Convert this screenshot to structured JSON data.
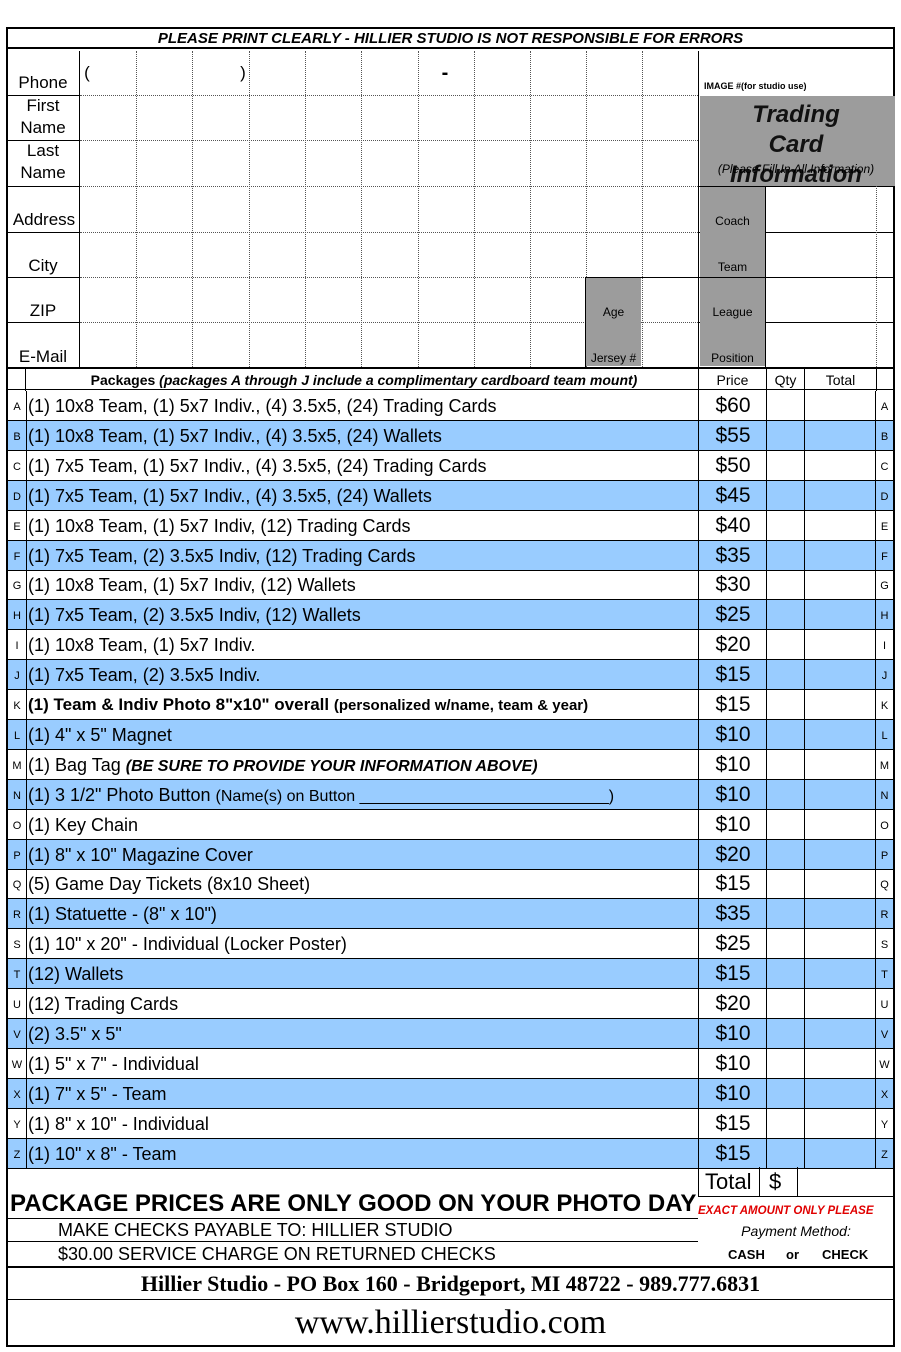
{
  "header_notice": "PLEASE PRINT CLEARLY - HILLIER STUDIO IS NOT RESPONSIBLE FOR ERRORS",
  "fields": {
    "phone": "Phone",
    "phone_paren_open": "(",
    "phone_paren_close": ")",
    "phone_dash": "-",
    "first_name": "First Name",
    "last_name": "Last Name",
    "address": "Address",
    "city": "City",
    "zip": "ZIP",
    "email": "E-Mail",
    "age": "Age",
    "jersey": "Jersey #"
  },
  "trading_card": {
    "image_note": "IMAGE #(for studio use)",
    "title": "Trading Card Information",
    "subtitle": "(Please Fill In All Information)",
    "coach": "Coach",
    "team": "Team",
    "league": "League",
    "position": "Position"
  },
  "table_header": {
    "packages": "Packages",
    "packages_note": "(packages A through J include a complimentary cardboard team mount)",
    "price": "Price",
    "qty": "Qty",
    "total": "Total"
  },
  "packages": [
    {
      "letter": "A",
      "desc": "(1) 10x8 Team, (1) 5x7 Indiv., (4) 3.5x5, (24) Trading Cards",
      "price": "$60"
    },
    {
      "letter": "B",
      "desc": "(1) 10x8 Team, (1) 5x7 Indiv., (4) 3.5x5, (24) Wallets",
      "price": "$55"
    },
    {
      "letter": "C",
      "desc": "(1) 7x5 Team, (1) 5x7 Indiv., (4) 3.5x5, (24) Trading Cards",
      "price": "$50"
    },
    {
      "letter": "D",
      "desc": "(1) 7x5 Team, (1) 5x7 Indiv., (4) 3.5x5, (24) Wallets",
      "price": "$45"
    },
    {
      "letter": "E",
      "desc": "(1) 10x8 Team, (1) 5x7 Indiv, (12) Trading Cards",
      "price": "$40"
    },
    {
      "letter": "F",
      "desc": "(1) 7x5 Team, (2) 3.5x5 Indiv, (12) Trading Cards",
      "price": "$35"
    },
    {
      "letter": "G",
      "desc": "(1) 10x8 Team, (1) 5x7 Indiv, (12) Wallets",
      "price": "$30"
    },
    {
      "letter": "H",
      "desc": "(1) 7x5 Team, (2) 3.5x5 Indiv, (12) Wallets",
      "price": "$25"
    },
    {
      "letter": "I",
      "desc": "(1) 10x8 Team, (1) 5x7 Indiv.",
      "price": "$20"
    },
    {
      "letter": "J",
      "desc": "(1) 7x5 Team, (2) 3.5x5 Indiv.",
      "price": "$15"
    },
    {
      "letter": "K",
      "desc": "(1) Team & Indiv Photo 8\"x10\" overall",
      "desc_extra": "(personalized w/name, team & year)",
      "price": "$15"
    },
    {
      "letter": "L",
      "desc": "(1) 4\" x 5\" Magnet",
      "price": "$10"
    },
    {
      "letter": "M",
      "desc": "(1) Bag Tag",
      "desc_extra": "(BE SURE TO PROVIDE YOUR INFORMATION ABOVE)",
      "price": "$10"
    },
    {
      "letter": "N",
      "desc": "(1) 3 1/2\" Photo Button",
      "desc_extra": "(Name(s) on Button ____________________________)",
      "price": "$10"
    },
    {
      "letter": "O",
      "desc": "(1) Key Chain",
      "price": "$10"
    },
    {
      "letter": "P",
      "desc": "(1) 8\" x 10\" Magazine Cover",
      "price": "$20"
    },
    {
      "letter": "Q",
      "desc": "(5) Game Day Tickets (8x10 Sheet)",
      "price": "$15"
    },
    {
      "letter": "R",
      "desc": "(1) Statuette - (8\" x 10\")",
      "price": "$35"
    },
    {
      "letter": "S",
      "desc": "(1) 10\" x 20\" - Individual (Locker Poster)",
      "price": "$25"
    },
    {
      "letter": "T",
      "desc": "(12) Wallets",
      "price": "$15"
    },
    {
      "letter": "U",
      "desc": "(12) Trading Cards",
      "price": "$20"
    },
    {
      "letter": "V",
      "desc": "(2) 3.5\" x 5\"",
      "price": "$10"
    },
    {
      "letter": "W",
      "desc": "(1) 5\" x 7\" - Individual",
      "price": "$10"
    },
    {
      "letter": "X",
      "desc": "(1) 7\" x 5\" - Team",
      "price": "$10"
    },
    {
      "letter": "Y",
      "desc": "(1) 8\" x 10\" - Individual",
      "price": "$15"
    },
    {
      "letter": "Z",
      "desc": "(1) 10\" x 8\" - Team",
      "price": "$15"
    }
  ],
  "footer": {
    "total_label": "Total",
    "total_currency": "$",
    "price_notice": "PACKAGE PRICES ARE ONLY GOOD ON YOUR PHOTO DAY",
    "exact_amount": "EXACT AMOUNT ONLY PLEASE",
    "payable": "MAKE CHECKS PAYABLE TO: HILLIER STUDIO",
    "payment_method": "Payment Method:",
    "service_charge": "$30.00 SERVICE CHARGE ON RETURNED CHECKS",
    "cash": "CASH",
    "or": "or",
    "check": "CHECK",
    "address_line": "Hillier Studio - PO Box 160 - Bridgeport, MI 48722 - 989.777.6831",
    "website": "www.hillierstudio.com"
  }
}
